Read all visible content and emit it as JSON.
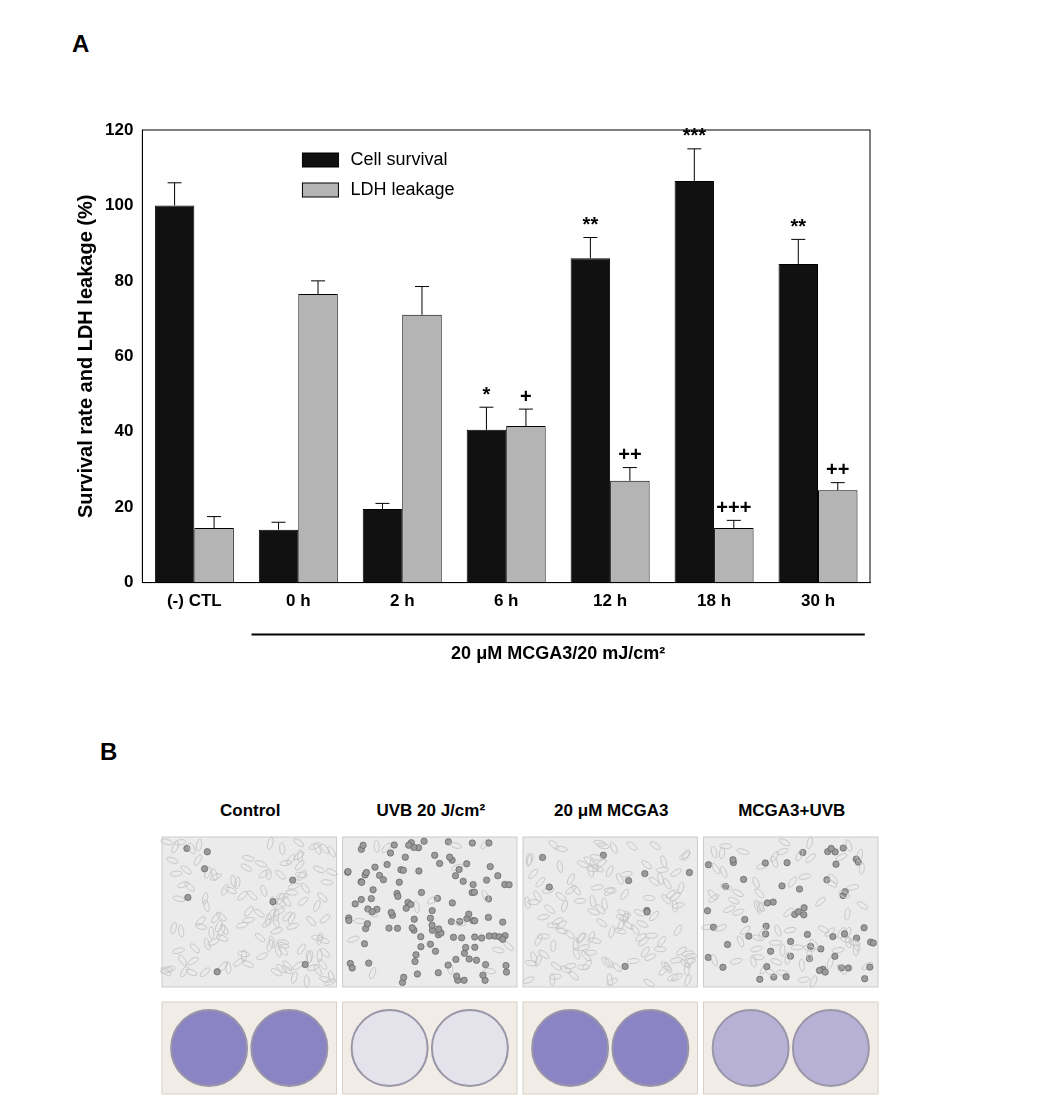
{
  "chart_data": {
    "type": "bar",
    "y_label": "Survival rate and LDH leakage (%)",
    "categories": [
      "(-) CTL",
      "0 h",
      "2 h",
      "6 h",
      "12 h",
      "18 h",
      "30 h"
    ],
    "series": [
      {
        "name": "Cell survival",
        "color": "#111111",
        "values": [
          100,
          14,
          19.5,
          40.5,
          86,
          106.5,
          84.5
        ],
        "errors": [
          6,
          2,
          1.5,
          6,
          5.5,
          8.5,
          6.5
        ],
        "significance": [
          null,
          null,
          null,
          "*",
          "**",
          "***",
          "**"
        ]
      },
      {
        "name": "LDH leakage",
        "color": "#b4b4b4",
        "values": [
          14.5,
          76.5,
          71,
          41.5,
          27,
          14.5,
          24.5
        ],
        "errors": [
          3,
          3.5,
          7.5,
          4.5,
          3.5,
          2,
          2
        ],
        "significance": [
          null,
          null,
          null,
          "+",
          "++",
          "+++",
          "++"
        ]
      }
    ],
    "annotations": [
      {
        "text": "20 μM MCGA3/20 mJ/cm²",
        "span": [
          "0 h",
          "30 h"
        ]
      }
    ],
    "ylim": [
      0,
      120
    ],
    "yticks": [
      0,
      20,
      40,
      60,
      80,
      100,
      120
    ],
    "grid": false,
    "legend": "upper left"
  },
  "panel_a_label": "A",
  "panel_b": {
    "label": "B",
    "columns": [
      "Control",
      "UVB 20 J/cm²",
      "20 μM MCGA3",
      "MCGA3+UVB"
    ]
  }
}
